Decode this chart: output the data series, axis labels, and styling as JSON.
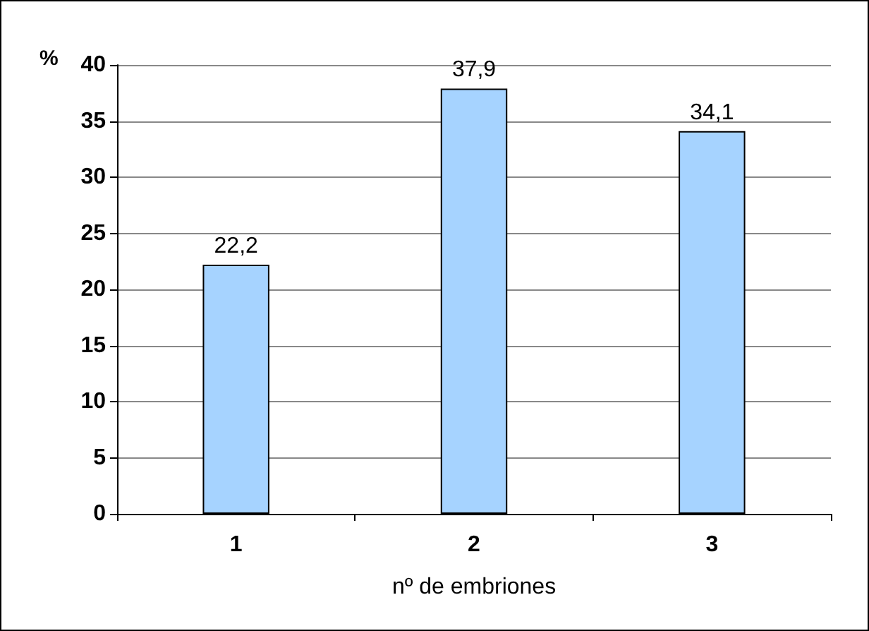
{
  "chart_data": {
    "type": "bar",
    "xlabel": "nº de embriones",
    "ylabel": "%",
    "categories": [
      "1",
      "2",
      "3"
    ],
    "series": [
      {
        "color": "#a6d3ff",
        "values": [
          22.2,
          37.9,
          34.1
        ],
        "value_labels": [
          "22,2",
          "37,9",
          "34,1"
        ]
      }
    ],
    "ylim": [
      0,
      40
    ],
    "yticks": [
      0,
      5,
      10,
      15,
      20,
      25,
      30,
      35,
      40
    ],
    "grid": "y"
  }
}
